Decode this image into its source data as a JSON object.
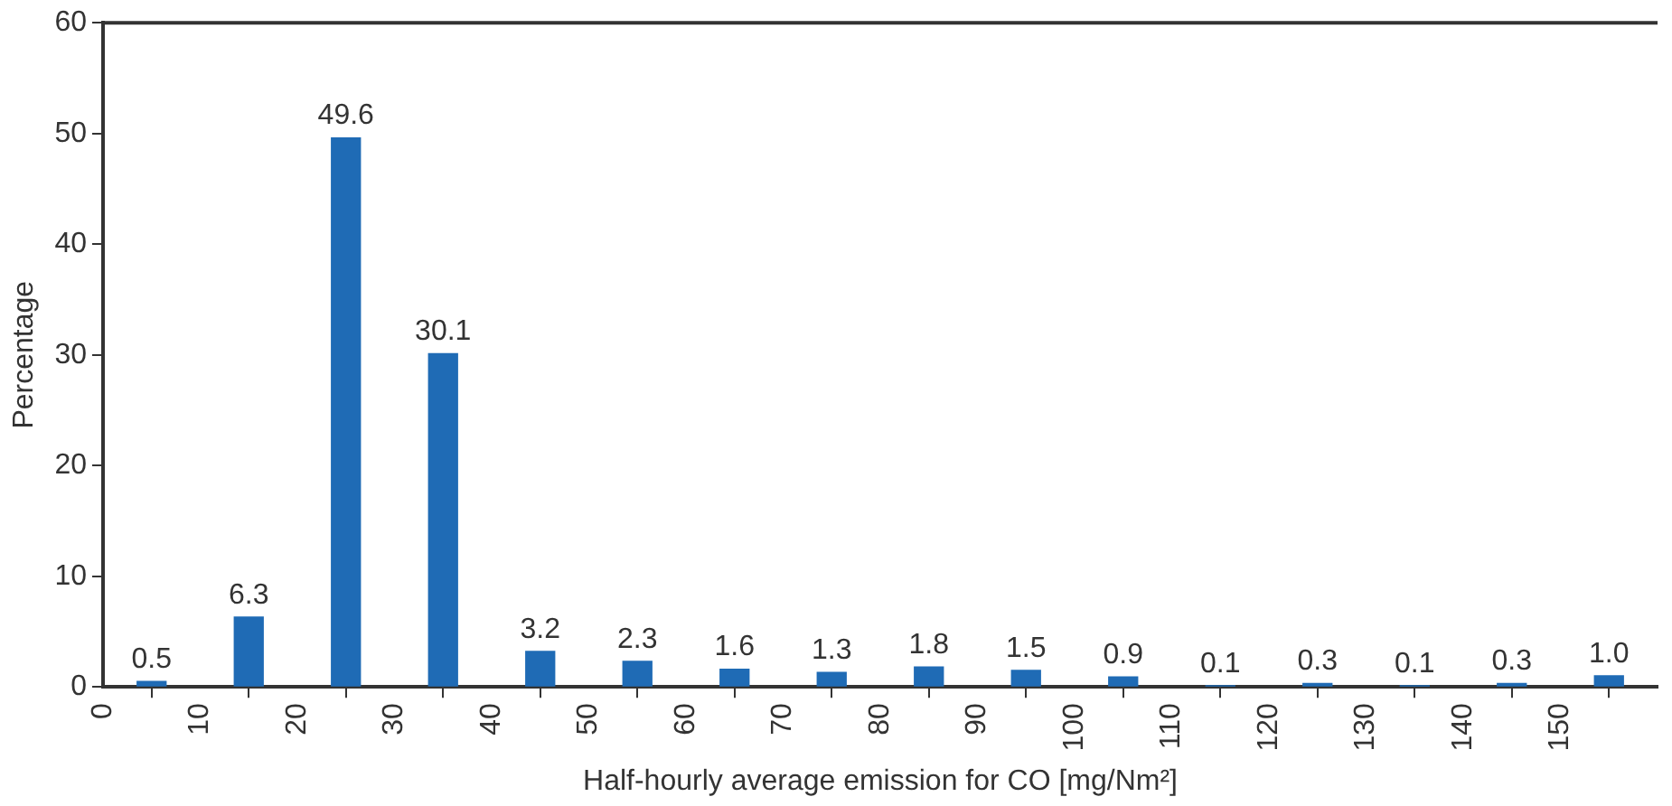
{
  "chart_data": {
    "type": "histogram",
    "xlabel": "Half-hourly average emission for CO [mg/Nm²]",
    "ylabel": "Percentage",
    "bins": [
      0,
      10,
      20,
      30,
      40,
      50,
      60,
      70,
      80,
      90,
      100,
      110,
      120,
      130,
      140,
      150,
      160
    ],
    "values": [
      0.5,
      6.3,
      49.6,
      30.1,
      3.2,
      2.3,
      1.6,
      1.3,
      1.8,
      1.5,
      0.9,
      0.1,
      0.3,
      0.1,
      0.3,
      1.0
    ],
    "value_labels": [
      "0.5",
      "6.3",
      "49.6",
      "30.1",
      "3.2",
      "2.3",
      "1.6",
      "1.3",
      "1.8",
      "1.5",
      "0.9",
      "0.1",
      "0.3",
      "0.1",
      "0.3",
      "1.0"
    ],
    "color": "#1f6bb5",
    "xlim": [
      0,
      160
    ],
    "xticks": [
      0,
      10,
      20,
      30,
      40,
      50,
      60,
      70,
      80,
      90,
      100,
      110,
      120,
      130,
      140,
      150
    ],
    "ylim": [
      0,
      60
    ],
    "yticks": [
      0,
      10,
      20,
      30,
      40,
      50,
      60
    ],
    "grid": false,
    "legend": false
  }
}
